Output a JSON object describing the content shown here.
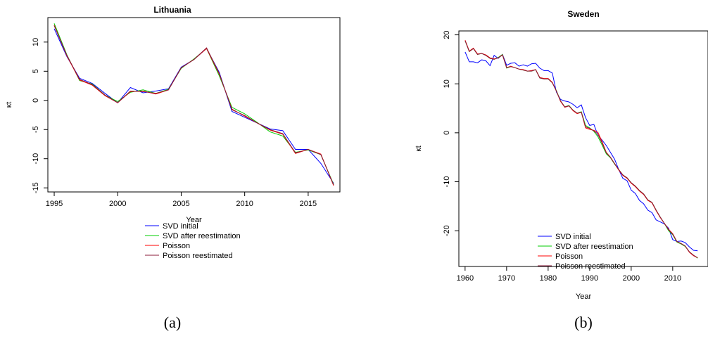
{
  "colors": {
    "svd_initial": "#0000ff",
    "svd_after": "#00cc00",
    "poisson": "#ff0000",
    "poisson_re": "#8b1a3a"
  },
  "chart_data": [
    {
      "type": "line",
      "panel_label": "(a)",
      "title": "Lithuania",
      "xlabel": "Year",
      "ylabel": "κt",
      "xlim": [
        1994.5,
        2017.5
      ],
      "ylim": [
        -15.7,
        14.2
      ],
      "xticks": [
        1995,
        2000,
        2005,
        2010,
        2015
      ],
      "yticks": [
        -15,
        -10,
        -5,
        0,
        5,
        10
      ],
      "grid": false,
      "legend_position": "bottom-right",
      "x": [
        1995,
        1996,
        1997,
        1998,
        1999,
        2000,
        2001,
        2002,
        2003,
        2004,
        2005,
        2006,
        2007,
        2008,
        2009,
        2010,
        2011,
        2012,
        2013,
        2014,
        2015,
        2016,
        2017
      ],
      "series": [
        {
          "name": "SVD initial",
          "color_key": "svd_initial",
          "values": [
            12.3,
            7.5,
            3.8,
            2.9,
            1.2,
            -0.4,
            2.2,
            1.3,
            1.6,
            2.0,
            5.7,
            7.0,
            8.9,
            4.8,
            -1.9,
            -2.9,
            -3.9,
            -4.9,
            -5.2,
            -8.4,
            -8.4,
            -10.8,
            -14.2
          ]
        },
        {
          "name": "SVD after reestimation",
          "color_key": "svd_after",
          "values": [
            13.2,
            7.8,
            3.4,
            2.8,
            0.9,
            -0.2,
            1.4,
            1.8,
            1.2,
            1.9,
            5.5,
            7.1,
            8.9,
            4.2,
            -1.2,
            -2.3,
            -3.8,
            -5.4,
            -6.1,
            -8.9,
            -8.5,
            -9.3,
            -14.4
          ]
        },
        {
          "name": "Poisson",
          "color_key": "poisson",
          "values": [
            12.9,
            7.6,
            3.5,
            2.6,
            0.8,
            -0.4,
            1.5,
            1.6,
            1.1,
            1.8,
            5.6,
            7.0,
            8.9,
            4.5,
            -1.5,
            -2.7,
            -3.9,
            -5.1,
            -5.8,
            -9.1,
            -8.4,
            -9.2,
            -14.6
          ]
        },
        {
          "name": "Poisson reestimated",
          "color_key": "poisson_re",
          "values": [
            12.8,
            7.7,
            3.6,
            2.7,
            0.9,
            -0.4,
            1.6,
            1.5,
            1.2,
            1.8,
            5.6,
            7.0,
            9.0,
            4.6,
            -1.6,
            -2.6,
            -3.9,
            -5.0,
            -5.7,
            -9.0,
            -8.4,
            -9.3,
            -14.5
          ]
        }
      ]
    },
    {
      "type": "line",
      "panel_label": "(b)",
      "title": "Sweden",
      "xlabel": "Year",
      "ylabel": "κt",
      "xlim": [
        1958.5,
        2018.5
      ],
      "ylim": [
        -27.3,
        20.8
      ],
      "xticks": [
        1960,
        1970,
        1980,
        1990,
        2000,
        2010
      ],
      "yticks": [
        -20,
        -10,
        0,
        10,
        20
      ],
      "grid": false,
      "legend_position": "bottom-right",
      "x": [
        1960,
        1961,
        1962,
        1963,
        1964,
        1965,
        1966,
        1967,
        1968,
        1969,
        1970,
        1971,
        1972,
        1973,
        1974,
        1975,
        1976,
        1977,
        1978,
        1979,
        1980,
        1981,
        1982,
        1983,
        1984,
        1985,
        1986,
        1987,
        1988,
        1989,
        1990,
        1991,
        1992,
        1993,
        1994,
        1995,
        1996,
        1997,
        1998,
        1999,
        2000,
        2001,
        2002,
        2003,
        2004,
        2005,
        2006,
        2007,
        2008,
        2009,
        2010,
        2011,
        2012,
        2013,
        2014,
        2015,
        2016
      ],
      "series": [
        {
          "name": "SVD initial",
          "color_key": "svd_initial",
          "values": [
            16.5,
            14.5,
            14.5,
            14.3,
            14.9,
            14.7,
            13.7,
            15.8,
            15.2,
            16.0,
            13.8,
            14.2,
            14.3,
            13.6,
            13.9,
            13.6,
            14.1,
            14.2,
            13.2,
            12.7,
            12.7,
            12.2,
            8.3,
            6.8,
            6.5,
            6.3,
            5.8,
            5.1,
            5.7,
            3.1,
            1.5,
            1.7,
            -0.5,
            -1.5,
            -2.6,
            -4.0,
            -5.4,
            -7.5,
            -9.3,
            -9.8,
            -11.7,
            -12.4,
            -13.8,
            -14.5,
            -15.8,
            -16.3,
            -17.8,
            -18.2,
            -18.6,
            -19.5,
            -21.8,
            -22.2,
            -22.1,
            -22.4,
            -23.3,
            -24.0,
            -24.1
          ]
        },
        {
          "name": "SVD after reestimation",
          "color_key": "svd_after",
          "values": [
            18.8,
            16.6,
            17.2,
            16.0,
            16.2,
            15.8,
            15.2,
            15.0,
            15.4,
            16.0,
            13.2,
            13.5,
            13.3,
            13.0,
            12.8,
            12.6,
            12.6,
            12.9,
            11.2,
            11.0,
            11.0,
            10.2,
            8.6,
            6.5,
            5.3,
            5.6,
            4.6,
            4.0,
            4.3,
            1.5,
            1.0,
            0.3,
            -0.8,
            -2.5,
            -4.3,
            -5.1,
            -6.4,
            -7.5,
            -8.6,
            -9.2,
            -10.2,
            -10.9,
            -11.8,
            -12.5,
            -13.7,
            -14.2,
            -15.8,
            -17.2,
            -18.5,
            -20.0,
            -20.8,
            -22.3,
            -22.7,
            -23.2,
            -24.3,
            -25.0,
            -25.6
          ]
        },
        {
          "name": "Poisson",
          "color_key": "poisson",
          "values": [
            18.9,
            16.7,
            17.3,
            16.1,
            16.2,
            15.9,
            15.3,
            15.1,
            15.3,
            15.9,
            13.3,
            13.6,
            13.3,
            13.0,
            12.9,
            12.6,
            12.7,
            12.9,
            11.3,
            11.1,
            11.1,
            10.3,
            8.5,
            6.4,
            5.2,
            5.5,
            4.5,
            3.9,
            4.2,
            1.0,
            0.7,
            0.5,
            0.1,
            -1.8,
            -4.0,
            -5.0,
            -6.3,
            -7.6,
            -8.7,
            -9.3,
            -10.3,
            -11.0,
            -11.9,
            -12.6,
            -13.8,
            -14.3,
            -15.9,
            -17.3,
            -18.5,
            -19.7,
            -20.6,
            -22.2,
            -22.6,
            -23.1,
            -24.4,
            -25.1,
            -25.5
          ]
        },
        {
          "name": "Poisson reestimated",
          "color_key": "poisson_re",
          "values": [
            18.8,
            16.6,
            17.2,
            16.0,
            16.2,
            15.8,
            15.2,
            15.0,
            15.3,
            15.9,
            13.3,
            13.5,
            13.3,
            13.0,
            12.8,
            12.6,
            12.6,
            12.9,
            11.2,
            11.0,
            11.0,
            10.2,
            8.5,
            6.5,
            5.3,
            5.5,
            4.6,
            4.0,
            4.2,
            1.2,
            0.9,
            0.4,
            -0.3,
            -2.1,
            -4.1,
            -5.0,
            -6.3,
            -7.5,
            -8.6,
            -9.2,
            -10.2,
            -10.9,
            -11.8,
            -12.5,
            -13.7,
            -14.2,
            -15.8,
            -17.2,
            -18.5,
            -19.8,
            -20.7,
            -22.2,
            -22.6,
            -23.1,
            -24.3,
            -25.0,
            -25.5
          ]
        }
      ]
    }
  ]
}
